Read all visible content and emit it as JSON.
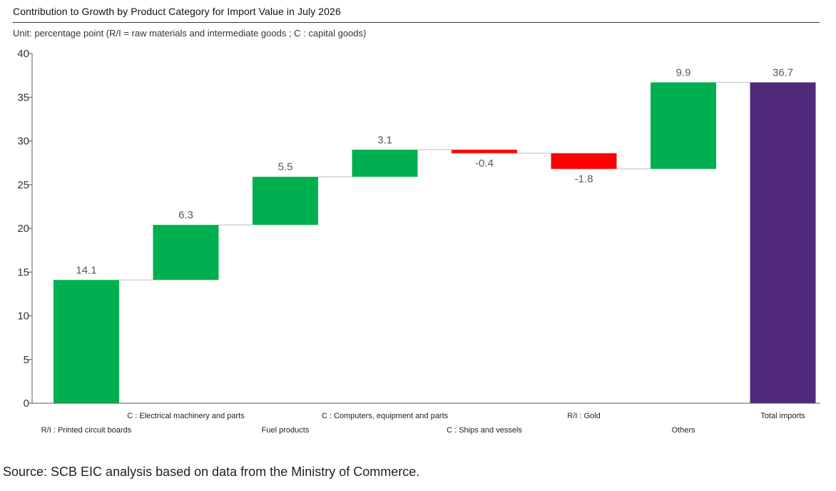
{
  "source_note": "Source: SCB EIC analysis based on data from the Ministry of Commerce.",
  "colors": {
    "increase": "#00b050",
    "decrease": "#ff0000",
    "total": "#4f2a7b",
    "connector": "#bfbfbf",
    "axis": "#595959",
    "label": "#595959"
  },
  "chart_data": {
    "type": "bar",
    "subtype": "waterfall",
    "title": "Contribution to Growth by Product Category for Import Value in July 2026",
    "subtitle": "Unit: percentage point (R/I = raw materials and intermediate goods ; C : capital goods)",
    "xlabel": "",
    "ylabel": "",
    "ylim": [
      0,
      40
    ],
    "yticks": [
      "0",
      "5",
      "10",
      "15",
      "20",
      "25",
      "30",
      "35",
      "40"
    ],
    "grid": false,
    "legend": "none",
    "categories": [
      "R/I : Printed circuit boards",
      "C : Electrical machinery and parts",
      "Fuel products",
      "C : Computers, equipment and parts",
      "C : Ships and vessels",
      "R/I : Gold",
      "Others",
      "Total imports"
    ],
    "values": [
      14.1,
      6.3,
      5.5,
      3.1,
      -0.4,
      -1.8,
      9.9,
      36.7
    ],
    "data_labels": [
      "14.1",
      "6.3",
      "5.5",
      "3.1",
      "-0.4",
      "-1.8",
      "9.9",
      "36.7"
    ],
    "kinds": [
      "increase",
      "increase",
      "increase",
      "increase",
      "decrease",
      "decrease",
      "increase",
      "total"
    ]
  }
}
